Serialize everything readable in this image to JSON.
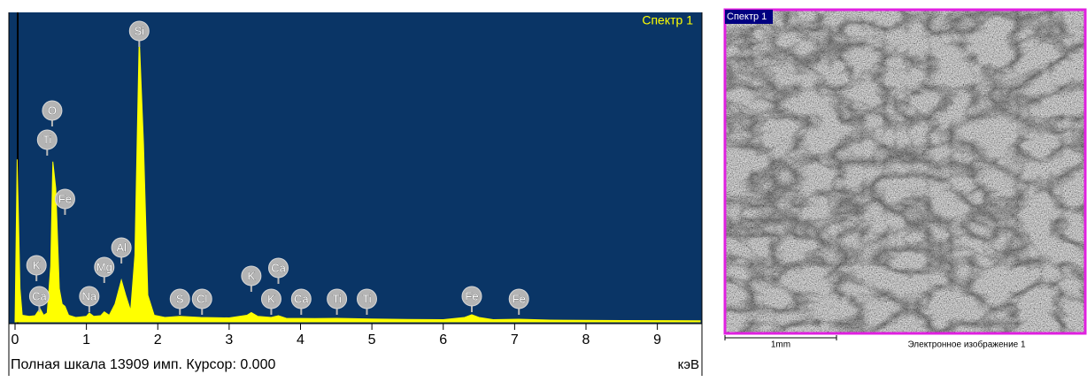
{
  "chart_data": {
    "type": "area",
    "title": "Спектр 1",
    "color": "#ffff00",
    "background": "#0a3566",
    "x": [
      0.0,
      0.03,
      0.07,
      0.1,
      0.2,
      0.28,
      0.35,
      0.4,
      0.45,
      0.5,
      0.53,
      0.57,
      0.62,
      0.66,
      0.7,
      0.75,
      0.85,
      1.0,
      1.04,
      1.1,
      1.2,
      1.25,
      1.32,
      1.4,
      1.49,
      1.55,
      1.62,
      1.68,
      1.74,
      1.8,
      1.86,
      1.95,
      2.1,
      2.31,
      2.6,
      3.0,
      3.25,
      3.31,
      3.4,
      3.59,
      3.69,
      3.8,
      4.2,
      4.51,
      5.0,
      5.5,
      6.0,
      6.3,
      6.4,
      6.5,
      6.7,
      7.06,
      7.5,
      8.5,
      9.6
    ],
    "values": [
      0,
      7300,
      1500,
      300,
      250,
      280,
      600,
      300,
      400,
      2500,
      7200,
      6000,
      1500,
      800,
      700,
      300,
      200,
      250,
      400,
      250,
      280,
      450,
      300,
      800,
      1880,
      1200,
      500,
      3000,
      12800,
      8000,
      1200,
      300,
      200,
      250,
      200,
      180,
      300,
      420,
      250,
      200,
      280,
      160,
      150,
      160,
      130,
      110,
      100,
      200,
      320,
      200,
      100,
      120,
      80,
      60,
      50
    ],
    "xlim": [
      0,
      9.6
    ],
    "xticks": [
      0,
      1,
      2,
      3,
      4,
      5,
      6,
      7,
      8,
      9
    ],
    "ylim": [
      0,
      13909
    ],
    "x_label": "кэВ",
    "status": "Полная шкала 13909 имп. Курсор: 0.000",
    "annotations": [
      {
        "label": "K",
        "x": 0.3
      },
      {
        "label": "Ca",
        "x": 0.34
      },
      {
        "label": "O",
        "x": 0.52
      },
      {
        "label": "Ti",
        "x": 0.45
      },
      {
        "label": "Fe",
        "x": 0.7
      },
      {
        "label": "Na",
        "x": 1.04
      },
      {
        "label": "Mg",
        "x": 1.25
      },
      {
        "label": "Al",
        "x": 1.49
      },
      {
        "label": "Si",
        "x": 1.74
      },
      {
        "label": "S",
        "x": 2.31
      },
      {
        "label": "Cl",
        "x": 2.62
      },
      {
        "label": "K",
        "x": 3.31
      },
      {
        "label": "Ca",
        "x": 3.69
      },
      {
        "label": "K",
        "x": 3.59
      },
      {
        "label": "Ca",
        "x": 4.01
      },
      {
        "label": "Ti",
        "x": 4.51
      },
      {
        "label": "Ti",
        "x": 4.93
      },
      {
        "label": "Fe",
        "x": 6.4
      },
      {
        "label": "Fe",
        "x": 7.06
      }
    ]
  },
  "image_panel": {
    "label": "Спектр 1",
    "scale_bar": "1mm",
    "caption": "Электронное изображение 1"
  }
}
